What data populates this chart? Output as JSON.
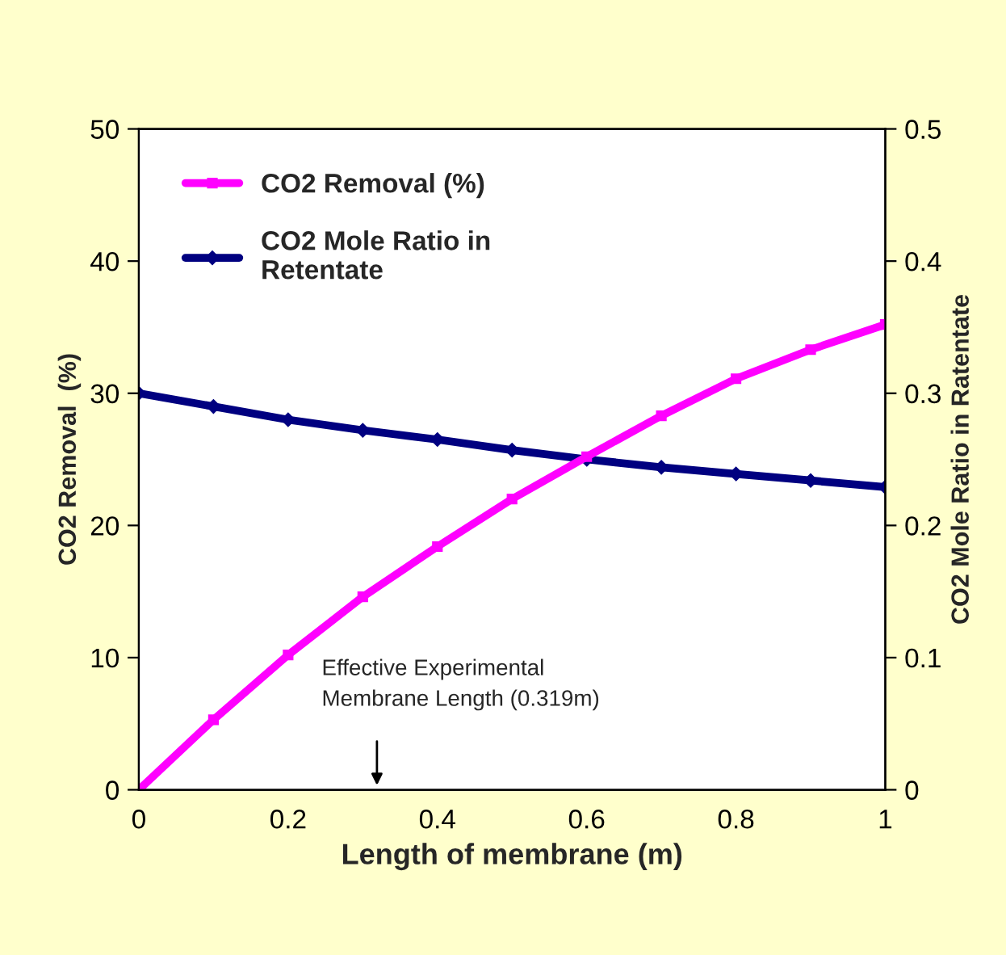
{
  "chart_data": {
    "type": "line",
    "xlabel": "Length of membrane (m)",
    "ylabel": "CO2 Removal  (%)",
    "y2label": "CO2 Mole Ratio in Ratentate",
    "x": [
      0,
      0.1,
      0.2,
      0.3,
      0.4,
      0.5,
      0.6,
      0.7,
      0.8,
      0.9,
      1.0
    ],
    "series": [
      {
        "name": "CO2 Removal (%)",
        "color": "#ff00ff",
        "marker": "square",
        "values": [
          0,
          5.3,
          10.2,
          14.6,
          18.4,
          22.0,
          25.2,
          28.3,
          31.1,
          33.3,
          35.2
        ]
      },
      {
        "name": "CO2 Mole Ratio in\nRetentate",
        "color": "#000080",
        "marker": "diamond",
        "axis": "y2",
        "values": [
          0.3,
          0.29,
          0.28,
          0.272,
          0.265,
          0.257,
          0.25,
          0.244,
          0.239,
          0.234,
          0.229
        ]
      }
    ],
    "xlim": [
      0,
      1
    ],
    "xticks": [
      0,
      0.2,
      0.4,
      0.6,
      0.8,
      1
    ],
    "ylim": [
      0,
      50
    ],
    "yticks": [
      0,
      10,
      20,
      30,
      40,
      50
    ],
    "y2lim": [
      0,
      0.5
    ],
    "y2ticks": [
      0,
      0.1,
      0.2,
      0.3,
      0.4,
      0.5
    ],
    "annotations": [
      "Effective Experimental\nMembrane Length (0.319m)"
    ],
    "legend": "top left",
    "grid": false,
    "line_style": "solid"
  }
}
